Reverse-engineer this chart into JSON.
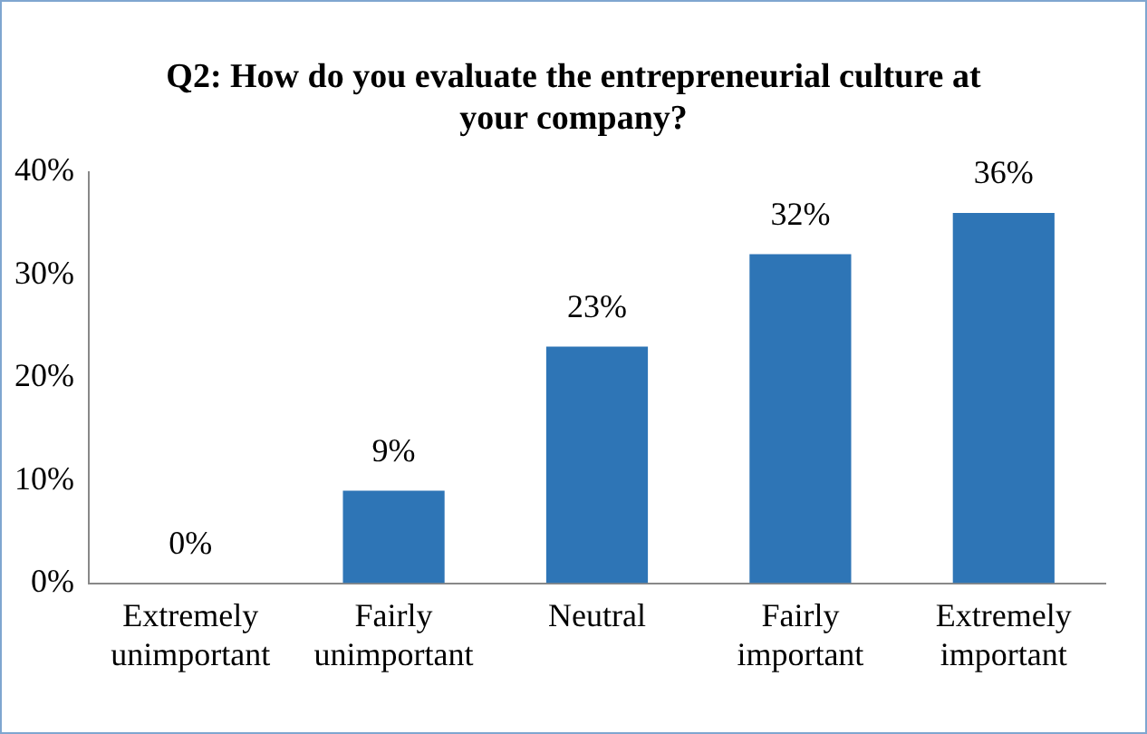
{
  "chart_data": {
    "type": "bar",
    "title": "Q2: How do you evaluate the entrepreneurial culture at your company?",
    "categories": [
      "Extremely unimportant",
      "Fairly unimportant",
      "Neutral",
      "Fairly important",
      "Extremely important"
    ],
    "values": [
      0,
      9,
      23,
      32,
      36
    ],
    "value_labels": [
      "0%",
      "9%",
      "23%",
      "32%",
      "36%"
    ],
    "color": "#2e75b6",
    "ylim": [
      0,
      40
    ],
    "yticks": [
      {
        "value": 0,
        "label": "0%"
      },
      {
        "value": 10,
        "label": "10%"
      },
      {
        "value": 20,
        "label": "20%"
      },
      {
        "value": 30,
        "label": "30%"
      },
      {
        "value": 40,
        "label": "40%"
      }
    ],
    "grid": false,
    "legend": false
  }
}
